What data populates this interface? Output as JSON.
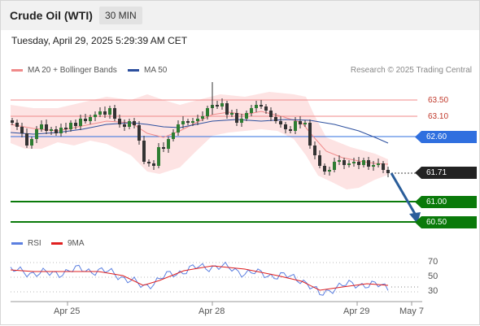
{
  "header": {
    "title": "Crude Oil (WTI)",
    "timeframe": "30 MIN"
  },
  "datetime": "Tuesday, April 29, 2025 5:29:39 AM CET",
  "legend": {
    "ma20": "MA 20 + Bollinger Bands",
    "ma50": "MA 50",
    "research": "Research © 2025 Trading Central",
    "ma20_color": "#f08a8a",
    "ma50_color": "#2c4f9e"
  },
  "levels": [
    {
      "value": "63.50",
      "style": "plain",
      "color": "#f08a8a"
    },
    {
      "value": "63.10",
      "style": "plain",
      "color": "#f08a8a"
    },
    {
      "value": "62.60",
      "style": "fill",
      "color": "#2f6fdf"
    },
    {
      "value": "61.71",
      "style": "fill",
      "color": "#222222"
    },
    {
      "value": "61.00",
      "style": "fill",
      "color": "#0a7a0a"
    },
    {
      "value": "60.50",
      "style": "fill",
      "color": "#0a7a0a"
    }
  ],
  "rsi": {
    "label": "RSI",
    "ma_label": "9MA",
    "rsi_color": "#5b7fe0",
    "ma_color": "#e02020",
    "ticks": [
      "70",
      "50",
      "30"
    ]
  },
  "xaxis": {
    "labels": [
      "Apr 25",
      "Apr 28",
      "Apr 29",
      "May 7"
    ]
  },
  "colors": {
    "bull": "#2e7d32",
    "bear": "#333333",
    "band": "#fde3e3",
    "arrow": "#2a5d9a"
  }
}
